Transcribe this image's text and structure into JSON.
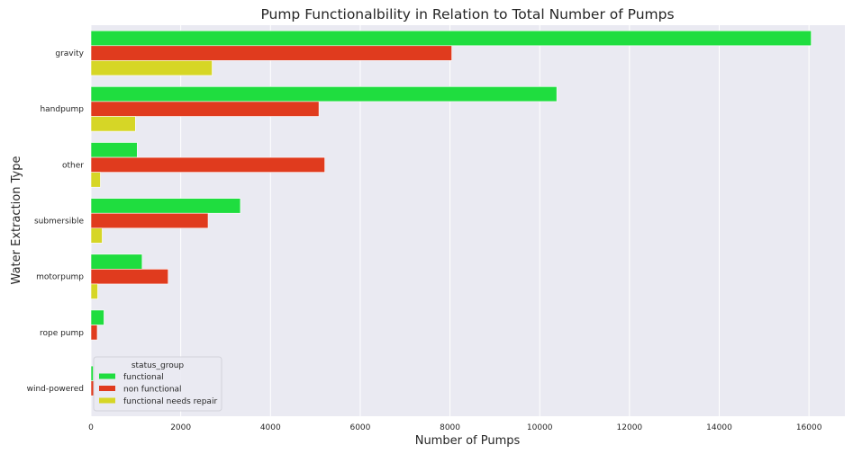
{
  "chart_data": {
    "type": "bar",
    "orientation": "horizontal",
    "title": "Pump Functionalbility in Relation to Total Number of Pumps",
    "xlabel": "Number of Pumps",
    "ylabel": "Water Extraction Type",
    "xlim": [
      0,
      16800
    ],
    "xticks": [
      0,
      2000,
      4000,
      6000,
      8000,
      10000,
      12000,
      14000,
      16000
    ],
    "grid": true,
    "categories": [
      "gravity",
      "handpump",
      "other",
      "submersible",
      "motorpump",
      "rope pump",
      "wind-powered"
    ],
    "series": [
      {
        "name": "functional",
        "color": "#1fdd3f",
        "values": [
          16050,
          10380,
          1030,
          3330,
          1140,
          290,
          50
        ]
      },
      {
        "name": "non functional",
        "color": "#e03b1e",
        "values": [
          8040,
          5080,
          5210,
          2610,
          1720,
          140,
          60
        ]
      },
      {
        "name": "functional needs repair",
        "color": "#d6d626",
        "values": [
          2700,
          990,
          210,
          250,
          150,
          0,
          0
        ]
      }
    ],
    "legend": {
      "title": "status_group",
      "placement": "lower-left"
    }
  }
}
